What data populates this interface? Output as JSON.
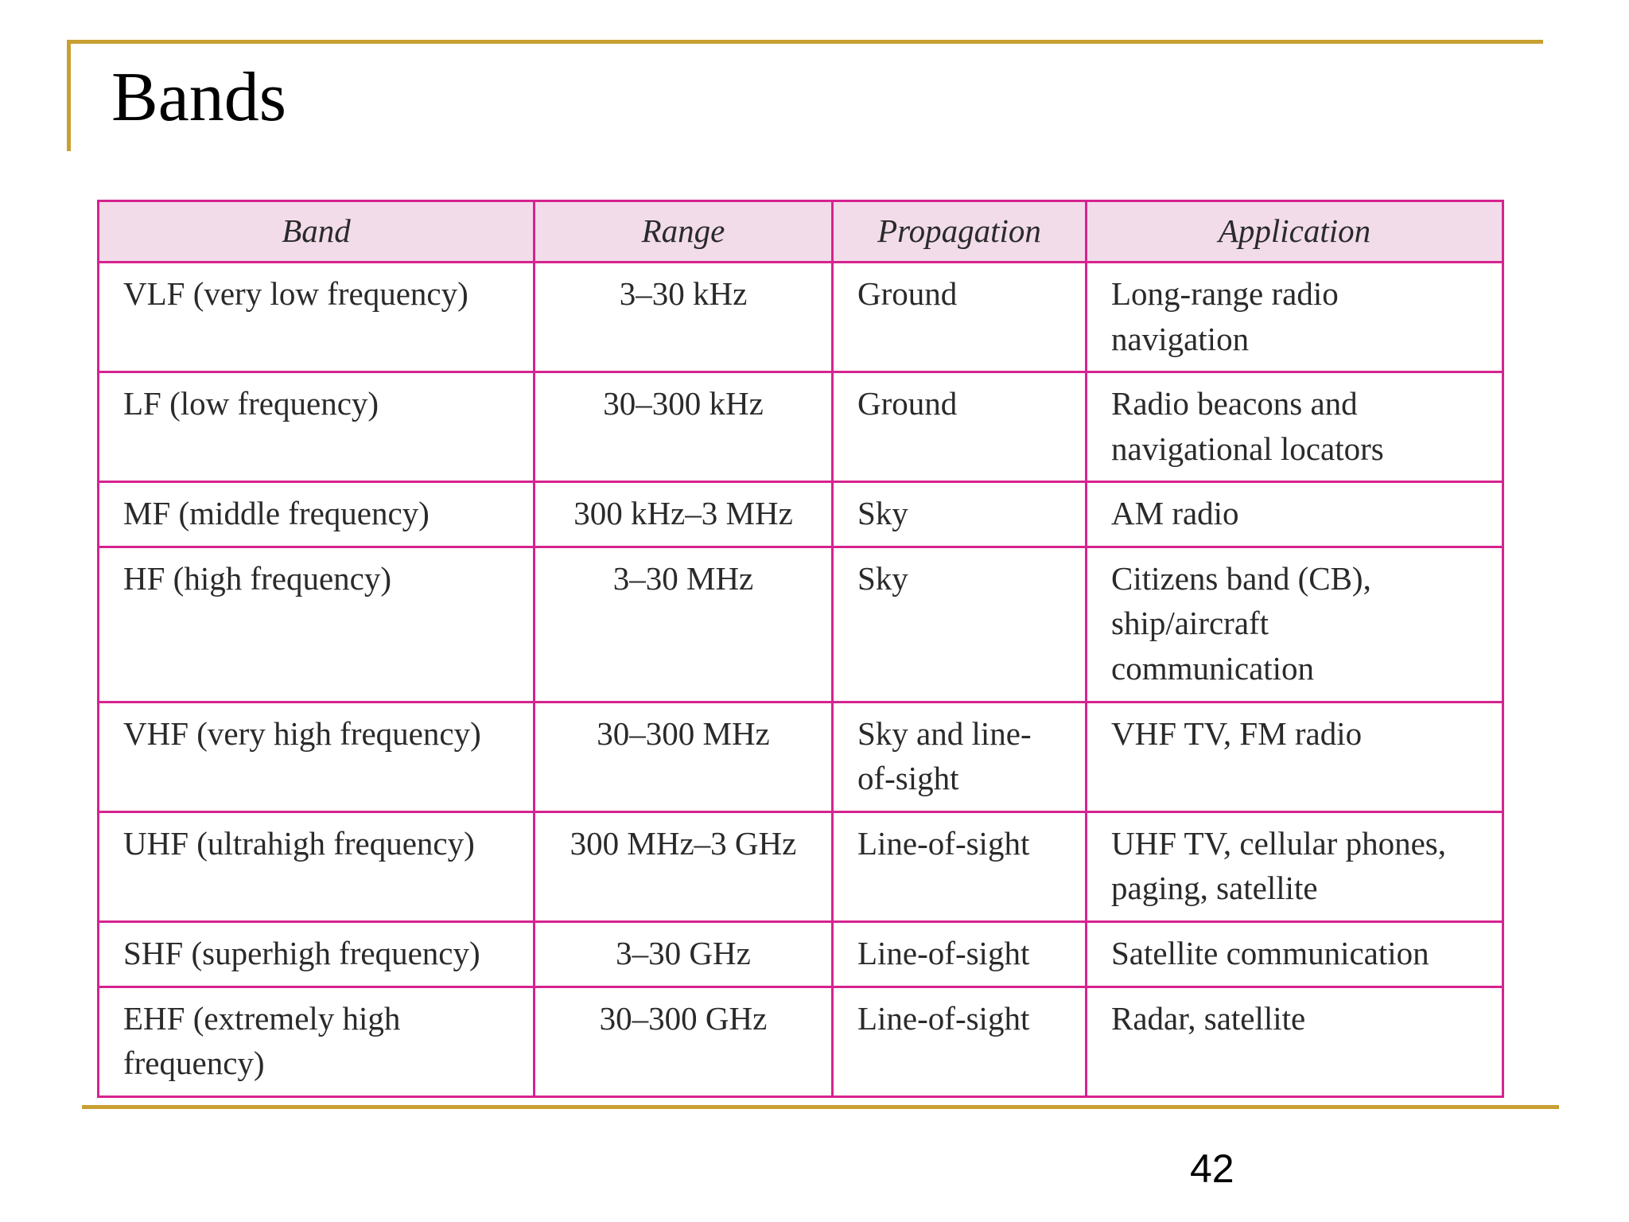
{
  "slide": {
    "title": "Bands",
    "page_number": "42"
  },
  "table": {
    "headers": [
      "Band",
      "Range",
      "Propagation",
      "Application"
    ],
    "rows": [
      [
        "VLF (very low frequency)",
        "3–30 kHz",
        "Ground",
        "Long-range radio navigation"
      ],
      [
        "LF (low frequency)",
        "30–300 kHz",
        "Ground",
        "Radio beacons and navigational locators"
      ],
      [
        "MF (middle frequency)",
        "300 kHz–3 MHz",
        "Sky",
        "AM radio"
      ],
      [
        "HF (high frequency)",
        "3–30 MHz",
        "Sky",
        "Citizens band (CB), ship/aircraft communication"
      ],
      [
        "VHF (very high frequency)",
        "30–300 MHz",
        "Sky and line-of-sight",
        "VHF TV, FM radio"
      ],
      [
        "UHF (ultrahigh frequency)",
        "300 MHz–3 GHz",
        "Line-of-sight",
        "UHF TV, cellular phones, paging, satellite"
      ],
      [
        "SHF (superhigh frequency)",
        "3–30 GHz",
        "Line-of-sight",
        "Satellite communication"
      ],
      [
        "EHF (extremely high frequency)",
        "30–300 GHz",
        "Line-of-sight",
        "Radar, satellite"
      ]
    ]
  },
  "colors": {
    "accent_gold": "#c8a032",
    "table_border": "#d6238f",
    "header_fill": "#f2dcea"
  }
}
